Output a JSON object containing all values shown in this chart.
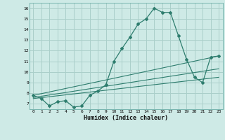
{
  "xlabel": "Humidex (Indice chaleur)",
  "bg_color": "#ceeae6",
  "grid_color": "#aacfca",
  "line_color": "#2e7d6e",
  "xlim": [
    -0.5,
    23.5
  ],
  "ylim": [
    6.5,
    16.5
  ],
  "xticks": [
    0,
    1,
    2,
    3,
    4,
    5,
    6,
    7,
    8,
    9,
    10,
    11,
    12,
    13,
    14,
    15,
    16,
    17,
    18,
    19,
    20,
    21,
    22,
    23
  ],
  "yticks": [
    7,
    8,
    9,
    10,
    11,
    12,
    13,
    14,
    15,
    16
  ],
  "main_x": [
    0,
    1,
    2,
    3,
    4,
    5,
    6,
    7,
    8,
    9,
    10,
    11,
    12,
    13,
    14,
    15,
    16,
    17,
    18,
    19,
    20,
    21,
    22,
    23
  ],
  "main_y": [
    7.8,
    7.5,
    6.8,
    7.2,
    7.3,
    6.7,
    6.8,
    7.8,
    8.2,
    8.8,
    11.0,
    12.2,
    13.3,
    14.5,
    15.0,
    16.0,
    15.6,
    15.6,
    13.4,
    11.2,
    9.5,
    9.0,
    11.4,
    11.5
  ],
  "trend1_x": [
    0,
    23
  ],
  "trend1_y": [
    7.8,
    11.5
  ],
  "trend2_x": [
    0,
    23
  ],
  "trend2_y": [
    7.6,
    10.3
  ],
  "trend3_x": [
    0,
    23
  ],
  "trend3_y": [
    7.5,
    9.5
  ]
}
